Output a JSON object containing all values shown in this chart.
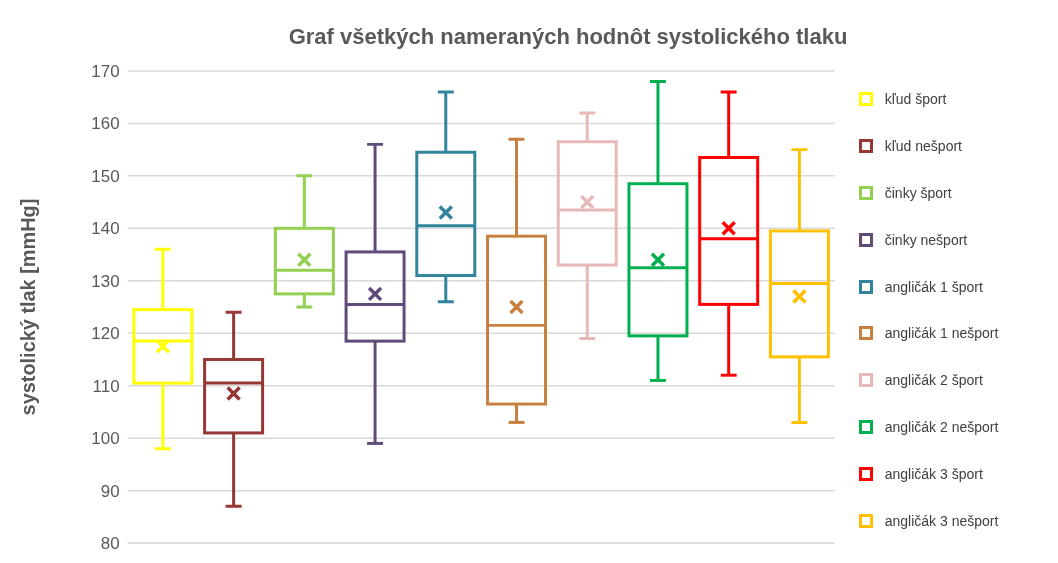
{
  "chart_data": {
    "type": "box",
    "title": "Graf všetkých nameraných hodnôt systolického tlaku",
    "ylabel": "systolický tlak [mmHg]",
    "categories": [
      null
    ],
    "ylim": [
      80,
      170
    ],
    "yticks": [
      80,
      90,
      100,
      110,
      120,
      130,
      140,
      150,
      160,
      170
    ],
    "grid": "y",
    "legend": "right",
    "series": [
      {
        "name": "kľud šport",
        "color": "#ffff00",
        "boxes": [
          {
            "low": 98,
            "q1": 110.5,
            "median": 118.5,
            "q3": 124.5,
            "high": 136,
            "mean": 117.5
          }
        ]
      },
      {
        "name": "kľud nešport",
        "color": "#953735",
        "boxes": [
          {
            "low": 87,
            "q1": 101,
            "median": 110.5,
            "q3": 115,
            "high": 124,
            "mean": 108.5
          }
        ]
      },
      {
        "name": "činky šport",
        "color": "#92d050",
        "boxes": [
          {
            "low": 125,
            "q1": 127.5,
            "median": 132,
            "q3": 140,
            "high": 150,
            "mean": 134
          }
        ]
      },
      {
        "name": "činky nešport",
        "color": "#604a7b",
        "boxes": [
          {
            "low": 99,
            "q1": 118.5,
            "median": 125.5,
            "q3": 135.5,
            "high": 156,
            "mean": 127.5
          }
        ]
      },
      {
        "name": "angličák 1 šport",
        "color": "#31849b",
        "boxes": [
          {
            "low": 126,
            "q1": 131,
            "median": 140.5,
            "q3": 154.5,
            "high": 166,
            "mean": 143
          }
        ]
      },
      {
        "name": "angličák 1 nešport",
        "color": "#c8803e",
        "boxes": [
          {
            "low": 103,
            "q1": 106.5,
            "median": 121.5,
            "q3": 138.5,
            "high": 157,
            "mean": 125
          }
        ]
      },
      {
        "name": "angličák 2 šport",
        "color": "#e6b9b8",
        "boxes": [
          {
            "low": 119,
            "q1": 133,
            "median": 143.5,
            "q3": 156.5,
            "high": 162,
            "mean": 145
          }
        ]
      },
      {
        "name": "angličák 2 nešport",
        "color": "#00b050",
        "boxes": [
          {
            "low": 111,
            "q1": 119.5,
            "median": 132.5,
            "q3": 148.5,
            "high": 168,
            "mean": 134
          }
        ]
      },
      {
        "name": "angličák 3 šport",
        "color": "#ff0000",
        "boxes": [
          {
            "low": 112,
            "q1": 125.5,
            "median": 138,
            "q3": 153.5,
            "high": 166,
            "mean": 140
          }
        ]
      },
      {
        "name": "angličák 3 nešport",
        "color": "#ffc000",
        "boxes": [
          {
            "low": 103,
            "q1": 115.5,
            "median": 129.5,
            "q3": 139.5,
            "high": 155,
            "mean": 127
          }
        ]
      }
    ]
  }
}
